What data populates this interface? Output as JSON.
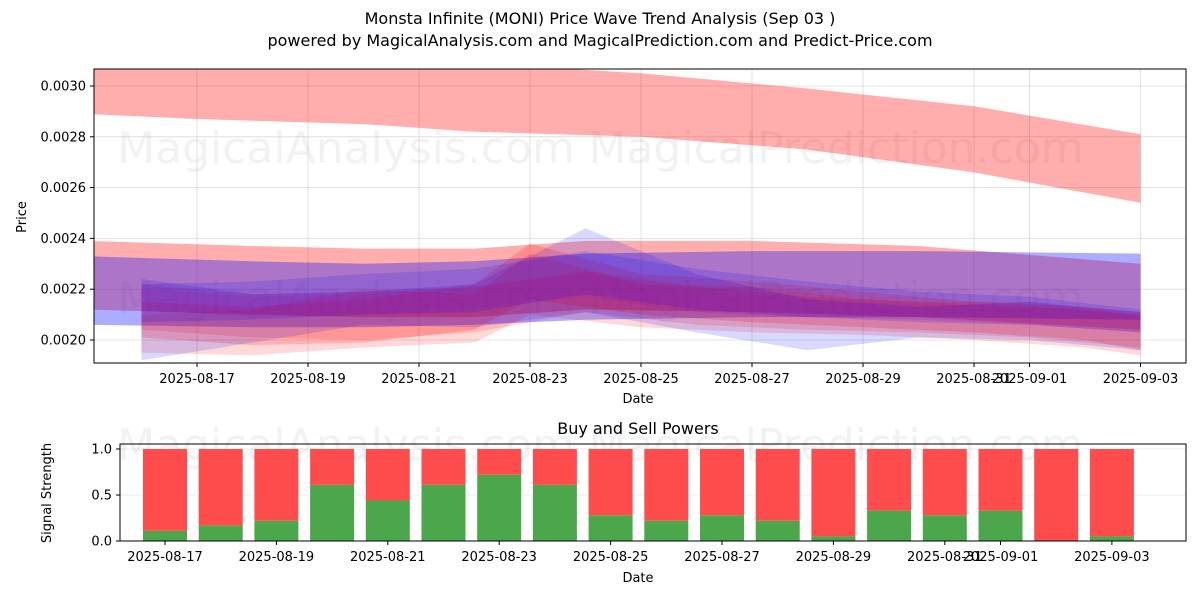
{
  "header": {
    "title": "Monsta Infinite (MONI) Price Wave Trend Analysis (Sep 03 )",
    "subtitle": "powered by MagicalAnalysis.com and MagicalPrediction.com and Predict-Price.com"
  },
  "watermarks": [
    "MagicalAnalysis.com",
    "MagicalPrediction.com"
  ],
  "colors": {
    "sell_band": "#ff0000",
    "buy_band": "#0000ff",
    "buy_bar": "#4ca64c",
    "sell_bar": "#ff4c4c"
  },
  "chart_data": [
    {
      "type": "area",
      "title": "",
      "xlabel": "Date",
      "ylabel": "Price",
      "ylim": [
        0.00191,
        0.00306
      ],
      "xlim": [
        "2025-08-15T06:00",
        "2025-09-04T06:00"
      ],
      "grid": true,
      "yticks": [
        "0.0020",
        "0.0022",
        "0.0024",
        "0.0026",
        "0.0028",
        "0.0030"
      ],
      "ytick_values": [
        0.002,
        0.0022,
        0.0024,
        0.0026,
        0.0028,
        0.003
      ],
      "xticks": [
        "2025-08-17",
        "2025-08-19",
        "2025-08-21",
        "2025-08-23",
        "2025-08-25",
        "2025-08-27",
        "2025-08-29",
        "2025-08-31",
        "2025-09-01",
        "2025-09-03"
      ],
      "series": [
        {
          "name": "long-trend-upper-red",
          "color": "red",
          "opacity": 0.32,
          "x": [
            "2025-08-15",
            "2025-08-17",
            "2025-08-20",
            "2025-08-22",
            "2025-08-25",
            "2025-08-28",
            "2025-08-31",
            "2025-09-03"
          ],
          "upper": [
            0.00313,
            0.00312,
            0.00311,
            0.00309,
            0.00305,
            0.00299,
            0.00292,
            0.00281
          ],
          "lower": [
            0.00289,
            0.00287,
            0.00285,
            0.00282,
            0.0028,
            0.00275,
            0.00266,
            0.00254
          ]
        },
        {
          "name": "mid-trend-red",
          "color": "red",
          "opacity": 0.32,
          "x": [
            "2025-08-15",
            "2025-08-18",
            "2025-08-20",
            "2025-08-22",
            "2025-08-24",
            "2025-08-27",
            "2025-08-30",
            "2025-09-03"
          ],
          "upper": [
            0.00239,
            0.00237,
            0.00236,
            0.00236,
            0.00239,
            0.00239,
            0.00237,
            0.0023
          ],
          "lower": [
            0.00212,
            0.0021,
            0.00209,
            0.00209,
            0.00212,
            0.00211,
            0.00209,
            0.00204
          ]
        },
        {
          "name": "mid-trend-blue",
          "color": "blue",
          "opacity": 0.32,
          "x": [
            "2025-08-15",
            "2025-08-18",
            "2025-08-20",
            "2025-08-22",
            "2025-08-24",
            "2025-08-27",
            "2025-08-30",
            "2025-09-03"
          ],
          "upper": [
            0.00233,
            0.00231,
            0.0023,
            0.00231,
            0.00234,
            0.00235,
            0.00235,
            0.00234
          ],
          "lower": [
            0.00206,
            0.00205,
            0.00205,
            0.00206,
            0.00208,
            0.00209,
            0.00209,
            0.00208
          ]
        },
        {
          "name": "wave-red-1",
          "color": "red",
          "opacity": 0.18,
          "x": [
            "2025-08-16",
            "2025-08-18",
            "2025-08-20",
            "2025-08-22",
            "2025-08-23",
            "2025-08-25",
            "2025-08-27",
            "2025-08-29",
            "2025-08-31",
            "2025-09-02",
            "2025-09-03"
          ],
          "upper": [
            0.00215,
            0.00213,
            0.00216,
            0.00222,
            0.00238,
            0.00226,
            0.00223,
            0.00219,
            0.00215,
            0.00213,
            0.00211
          ],
          "lower": [
            0.00201,
            0.00198,
            0.00199,
            0.00204,
            0.00216,
            0.0021,
            0.00207,
            0.00205,
            0.00203,
            0.002,
            0.00196
          ]
        },
        {
          "name": "wave-red-2",
          "color": "red",
          "opacity": 0.15,
          "x": [
            "2025-08-16",
            "2025-08-18",
            "2025-08-20",
            "2025-08-22",
            "2025-08-23",
            "2025-08-25",
            "2025-08-27",
            "2025-08-29",
            "2025-08-31",
            "2025-09-02",
            "2025-09-03"
          ],
          "upper": [
            0.0021,
            0.00212,
            0.0022,
            0.00218,
            0.00234,
            0.00222,
            0.00221,
            0.00216,
            0.00214,
            0.00212,
            0.00209
          ],
          "lower": [
            0.00195,
            0.00194,
            0.00197,
            0.00199,
            0.0021,
            0.00205,
            0.00203,
            0.00202,
            0.002,
            0.00197,
            0.00194
          ]
        },
        {
          "name": "wave-red-3",
          "color": "red",
          "opacity": 0.15,
          "x": [
            "2025-08-16",
            "2025-08-18",
            "2025-08-20",
            "2025-08-22",
            "2025-08-24",
            "2025-08-26",
            "2025-08-28",
            "2025-08-30",
            "2025-09-01",
            "2025-09-03"
          ],
          "upper": [
            0.00222,
            0.00218,
            0.00219,
            0.00221,
            0.00227,
            0.00221,
            0.00217,
            0.00215,
            0.00215,
            0.0021
          ],
          "lower": [
            0.00204,
            0.00201,
            0.002,
            0.00203,
            0.00211,
            0.00206,
            0.00204,
            0.00203,
            0.00201,
            0.00197
          ]
        },
        {
          "name": "wave-blue-1",
          "color": "blue",
          "opacity": 0.15,
          "x": [
            "2025-08-16",
            "2025-08-18",
            "2025-08-20",
            "2025-08-22",
            "2025-08-24",
            "2025-08-26",
            "2025-08-28",
            "2025-08-30",
            "2025-09-01",
            "2025-09-03"
          ],
          "upper": [
            0.00224,
            0.00218,
            0.00219,
            0.00222,
            0.00244,
            0.00226,
            0.00216,
            0.00213,
            0.00215,
            0.00211
          ],
          "lower": [
            0.00192,
            0.00199,
            0.00206,
            0.00205,
            0.00211,
            0.00203,
            0.00196,
            0.00201,
            0.002,
            0.00196
          ]
        },
        {
          "name": "wave-blue-2",
          "color": "blue",
          "opacity": 0.15,
          "x": [
            "2025-08-16",
            "2025-08-18",
            "2025-08-20",
            "2025-08-22",
            "2025-08-24",
            "2025-08-26",
            "2025-08-28",
            "2025-08-30",
            "2025-09-01",
            "2025-09-03"
          ],
          "upper": [
            0.00222,
            0.00223,
            0.00226,
            0.00228,
            0.00235,
            0.00228,
            0.00223,
            0.00219,
            0.00217,
            0.00212
          ],
          "lower": [
            0.00207,
            0.00208,
            0.0021,
            0.00211,
            0.00218,
            0.00212,
            0.00209,
            0.00207,
            0.00206,
            0.00203
          ]
        },
        {
          "name": "wave-purple-core",
          "color": "purple",
          "opacity": 0.22,
          "x": [
            "2025-08-16",
            "2025-08-18",
            "2025-08-20",
            "2025-08-22",
            "2025-08-24",
            "2025-08-26",
            "2025-08-28",
            "2025-08-30",
            "2025-09-01",
            "2025-09-03"
          ],
          "upper": [
            0.0022,
            0.00217,
            0.00218,
            0.00221,
            0.00226,
            0.00219,
            0.00216,
            0.00214,
            0.00213,
            0.0021
          ],
          "lower": [
            0.00212,
            0.00209,
            0.0021,
            0.00213,
            0.00217,
            0.00211,
            0.00209,
            0.00208,
            0.00206,
            0.00203
          ]
        }
      ]
    },
    {
      "type": "bar",
      "title": "Buy and Sell Powers",
      "xlabel": "Date",
      "ylabel": "Signal Strength",
      "ylim": [
        0,
        1.05
      ],
      "grid": true,
      "yticks": [
        "0.0",
        "0.5",
        "1.0"
      ],
      "ytick_values": [
        0,
        0.5,
        1.0
      ],
      "xticks": [
        "2025-08-17",
        "2025-08-19",
        "2025-08-21",
        "2025-08-23",
        "2025-08-25",
        "2025-08-27",
        "2025-08-29",
        "2025-08-31",
        "2025-09-01",
        "2025-09-03"
      ],
      "categories": [
        "2025-08-17",
        "2025-08-18",
        "2025-08-19",
        "2025-08-20",
        "2025-08-21",
        "2025-08-22",
        "2025-08-23",
        "2025-08-24",
        "2025-08-25",
        "2025-08-26",
        "2025-08-27",
        "2025-08-28",
        "2025-08-29",
        "2025-08-30",
        "2025-08-31",
        "2025-09-01",
        "2025-09-02",
        "2025-09-03"
      ],
      "series": [
        {
          "name": "Buy",
          "values": [
            0.11,
            0.17,
            0.22,
            0.61,
            0.44,
            0.61,
            0.72,
            0.61,
            0.28,
            0.22,
            0.28,
            0.22,
            0.05,
            0.33,
            0.28,
            0.33,
            0.0,
            0.05
          ]
        },
        {
          "name": "Sell",
          "values": [
            0.89,
            0.83,
            0.78,
            0.39,
            0.56,
            0.39,
            0.28,
            0.39,
            0.72,
            0.78,
            0.72,
            0.78,
            0.95,
            0.67,
            0.72,
            0.67,
            1.0,
            0.95
          ]
        }
      ]
    }
  ]
}
